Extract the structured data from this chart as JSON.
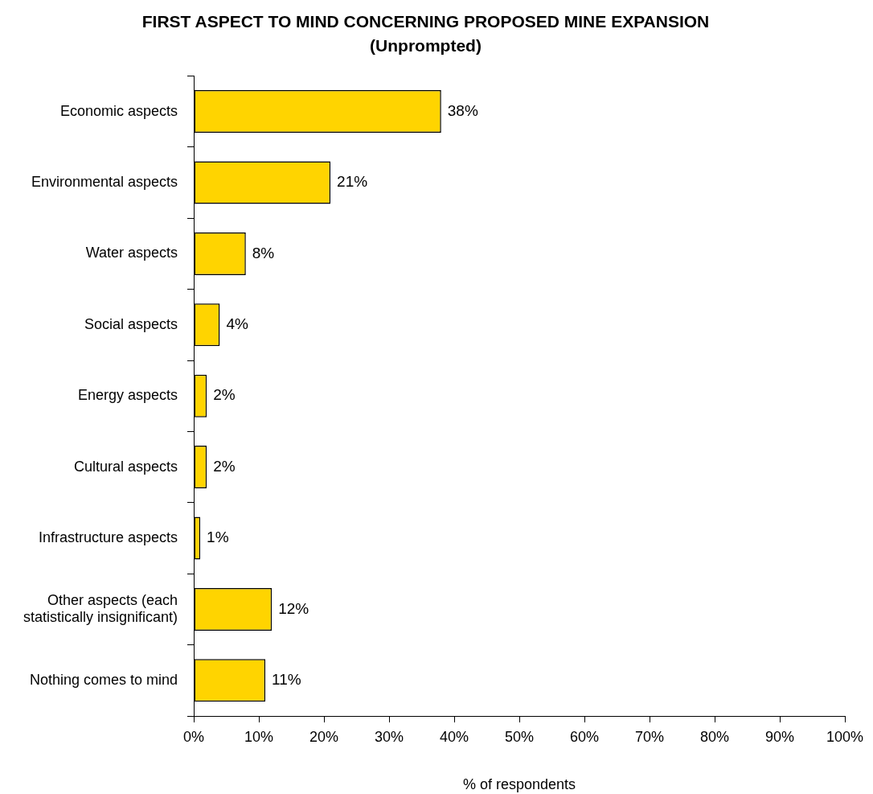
{
  "chart_data": {
    "type": "bar",
    "orientation": "horizontal",
    "title": "FIRST ASPECT TO MIND CONCERNING PROPOSED MINE EXPANSION",
    "subtitle": "(Unprompted)",
    "xlabel": "% of respondents",
    "categories": [
      "Economic aspects",
      "Environmental aspects",
      "Water aspects",
      "Social aspects",
      "Energy aspects",
      "Cultural aspects",
      "Infrastructure aspects",
      "Other aspects (each statistically insignificant)",
      "Nothing comes to mind"
    ],
    "values": [
      38,
      21,
      8,
      4,
      2,
      2,
      1,
      12,
      11
    ],
    "value_labels": [
      "38%",
      "21%",
      "8%",
      "4%",
      "2%",
      "2%",
      "1%",
      "12%",
      "11%"
    ],
    "color": "#ffd400",
    "xlim": [
      0,
      100
    ],
    "xticks": [
      {
        "value": 0,
        "label": "0%"
      },
      {
        "value": 10,
        "label": "10%"
      },
      {
        "value": 20,
        "label": "20%"
      },
      {
        "value": 30,
        "label": "30%"
      },
      {
        "value": 40,
        "label": "40%"
      },
      {
        "value": 50,
        "label": "50%"
      },
      {
        "value": 60,
        "label": "60%"
      },
      {
        "value": 70,
        "label": "70%"
      },
      {
        "value": 80,
        "label": "80%"
      },
      {
        "value": 90,
        "label": "90%"
      },
      {
        "value": 100,
        "label": "100%"
      }
    ]
  }
}
